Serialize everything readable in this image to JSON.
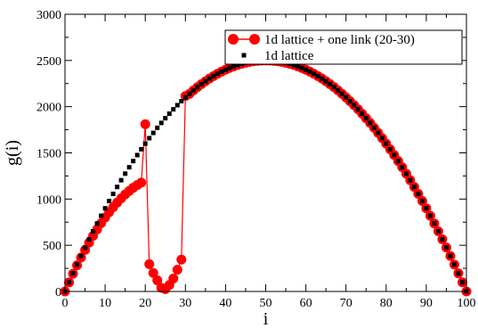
{
  "chart_data": {
    "type": "scatter",
    "xlabel": "i",
    "ylabel": "g(i)",
    "xlim": [
      0,
      100
    ],
    "ylim": [
      0,
      3000
    ],
    "x_ticks": [
      0,
      10,
      20,
      30,
      40,
      50,
      60,
      70,
      80,
      90,
      100
    ],
    "y_ticks": [
      0,
      500,
      1000,
      1500,
      2000,
      2500,
      3000
    ],
    "legend_position": "top-right",
    "series": [
      {
        "name": "1d lattice + one link (20-30)",
        "style": "line-with-circle-markers",
        "color": "#ff0000",
        "points": [
          [
            0,
            0
          ],
          [
            1,
            98
          ],
          [
            2,
            192
          ],
          [
            3,
            282
          ],
          [
            4,
            368
          ],
          [
            5,
            450
          ],
          [
            6,
            528
          ],
          [
            7,
            602
          ],
          [
            8,
            672
          ],
          [
            9,
            738
          ],
          [
            10,
            800
          ],
          [
            11,
            858
          ],
          [
            12,
            912
          ],
          [
            13,
            962
          ],
          [
            14,
            1008
          ],
          [
            15,
            1050
          ],
          [
            16,
            1088
          ],
          [
            17,
            1122
          ],
          [
            18,
            1152
          ],
          [
            19,
            1178
          ],
          [
            20,
            1810
          ],
          [
            21,
            295
          ],
          [
            22,
            200
          ],
          [
            23,
            120
          ],
          [
            24,
            40
          ],
          [
            25,
            25
          ],
          [
            26,
            70
          ],
          [
            27,
            140
          ],
          [
            28,
            235
          ],
          [
            29,
            345
          ],
          [
            30,
            2115
          ],
          [
            31,
            2138
          ],
          [
            32,
            2176
          ],
          [
            33,
            2211
          ],
          [
            34,
            2244
          ],
          [
            35,
            2275
          ],
          [
            36,
            2304
          ],
          [
            37,
            2331
          ],
          [
            38,
            2356
          ],
          [
            39,
            2379
          ],
          [
            40,
            2400
          ],
          [
            41,
            2419
          ],
          [
            42,
            2436
          ],
          [
            43,
            2451
          ],
          [
            44,
            2464
          ],
          [
            45,
            2475
          ],
          [
            46,
            2484
          ],
          [
            47,
            2491
          ],
          [
            48,
            2496
          ],
          [
            49,
            2499
          ],
          [
            50,
            2500
          ],
          [
            51,
            2499
          ],
          [
            52,
            2496
          ],
          [
            53,
            2491
          ],
          [
            54,
            2484
          ],
          [
            55,
            2475
          ],
          [
            56,
            2464
          ],
          [
            57,
            2451
          ],
          [
            58,
            2436
          ],
          [
            59,
            2419
          ],
          [
            60,
            2400
          ],
          [
            61,
            2379
          ],
          [
            62,
            2356
          ],
          [
            63,
            2331
          ],
          [
            64,
            2304
          ],
          [
            65,
            2275
          ],
          [
            66,
            2244
          ],
          [
            67,
            2211
          ],
          [
            68,
            2176
          ],
          [
            69,
            2139
          ],
          [
            70,
            2100
          ],
          [
            71,
            2059
          ],
          [
            72,
            2016
          ],
          [
            73,
            1971
          ],
          [
            74,
            1924
          ],
          [
            75,
            1875
          ],
          [
            76,
            1824
          ],
          [
            77,
            1771
          ],
          [
            78,
            1716
          ],
          [
            79,
            1659
          ],
          [
            80,
            1600
          ],
          [
            81,
            1539
          ],
          [
            82,
            1476
          ],
          [
            83,
            1411
          ],
          [
            84,
            1344
          ],
          [
            85,
            1275
          ],
          [
            86,
            1204
          ],
          [
            87,
            1131
          ],
          [
            88,
            1056
          ],
          [
            89,
            979
          ],
          [
            90,
            900
          ],
          [
            91,
            819
          ],
          [
            92,
            736
          ],
          [
            93,
            651
          ],
          [
            94,
            564
          ],
          [
            95,
            475
          ],
          [
            96,
            384
          ],
          [
            97,
            291
          ],
          [
            98,
            196
          ],
          [
            99,
            99
          ],
          [
            100,
            0
          ]
        ]
      },
      {
        "name": "1d lattice",
        "style": "square-markers",
        "color": "#000000",
        "points": [
          [
            0,
            0
          ],
          [
            1,
            99
          ],
          [
            2,
            196
          ],
          [
            3,
            291
          ],
          [
            4,
            384
          ],
          [
            5,
            475
          ],
          [
            6,
            564
          ],
          [
            7,
            651
          ],
          [
            8,
            736
          ],
          [
            9,
            819
          ],
          [
            10,
            900
          ],
          [
            11,
            979
          ],
          [
            12,
            1056
          ],
          [
            13,
            1131
          ],
          [
            14,
            1204
          ],
          [
            15,
            1275
          ],
          [
            16,
            1344
          ],
          [
            17,
            1411
          ],
          [
            18,
            1476
          ],
          [
            19,
            1539
          ],
          [
            20,
            1600
          ],
          [
            21,
            1659
          ],
          [
            22,
            1716
          ],
          [
            23,
            1771
          ],
          [
            24,
            1824
          ],
          [
            25,
            1875
          ],
          [
            26,
            1924
          ],
          [
            27,
            1971
          ],
          [
            28,
            2016
          ],
          [
            29,
            2059
          ],
          [
            30,
            2100
          ],
          [
            31,
            2139
          ],
          [
            32,
            2176
          ],
          [
            33,
            2211
          ],
          [
            34,
            2244
          ],
          [
            35,
            2275
          ],
          [
            36,
            2304
          ],
          [
            37,
            2331
          ],
          [
            38,
            2356
          ],
          [
            39,
            2379
          ],
          [
            40,
            2400
          ],
          [
            41,
            2419
          ],
          [
            42,
            2436
          ],
          [
            43,
            2451
          ],
          [
            44,
            2464
          ],
          [
            45,
            2475
          ],
          [
            46,
            2484
          ],
          [
            47,
            2491
          ],
          [
            48,
            2496
          ],
          [
            49,
            2499
          ],
          [
            50,
            2500
          ],
          [
            51,
            2499
          ],
          [
            52,
            2496
          ],
          [
            53,
            2491
          ],
          [
            54,
            2484
          ],
          [
            55,
            2475
          ],
          [
            56,
            2464
          ],
          [
            57,
            2451
          ],
          [
            58,
            2436
          ],
          [
            59,
            2419
          ],
          [
            60,
            2400
          ],
          [
            61,
            2379
          ],
          [
            62,
            2356
          ],
          [
            63,
            2331
          ],
          [
            64,
            2304
          ],
          [
            65,
            2275
          ],
          [
            66,
            2244
          ],
          [
            67,
            2211
          ],
          [
            68,
            2176
          ],
          [
            69,
            2139
          ],
          [
            70,
            2100
          ],
          [
            71,
            2059
          ],
          [
            72,
            2016
          ],
          [
            73,
            1971
          ],
          [
            74,
            1924
          ],
          [
            75,
            1875
          ],
          [
            76,
            1824
          ],
          [
            77,
            1771
          ],
          [
            78,
            1716
          ],
          [
            79,
            1659
          ],
          [
            80,
            1600
          ],
          [
            81,
            1539
          ],
          [
            82,
            1476
          ],
          [
            83,
            1411
          ],
          [
            84,
            1344
          ],
          [
            85,
            1275
          ],
          [
            86,
            1204
          ],
          [
            87,
            1131
          ],
          [
            88,
            1056
          ],
          [
            89,
            979
          ],
          [
            90,
            900
          ],
          [
            91,
            819
          ],
          [
            92,
            736
          ],
          [
            93,
            651
          ],
          [
            94,
            564
          ],
          [
            95,
            475
          ],
          [
            96,
            384
          ],
          [
            97,
            291
          ],
          [
            98,
            196
          ],
          [
            99,
            99
          ],
          [
            100,
            0
          ]
        ]
      }
    ]
  }
}
